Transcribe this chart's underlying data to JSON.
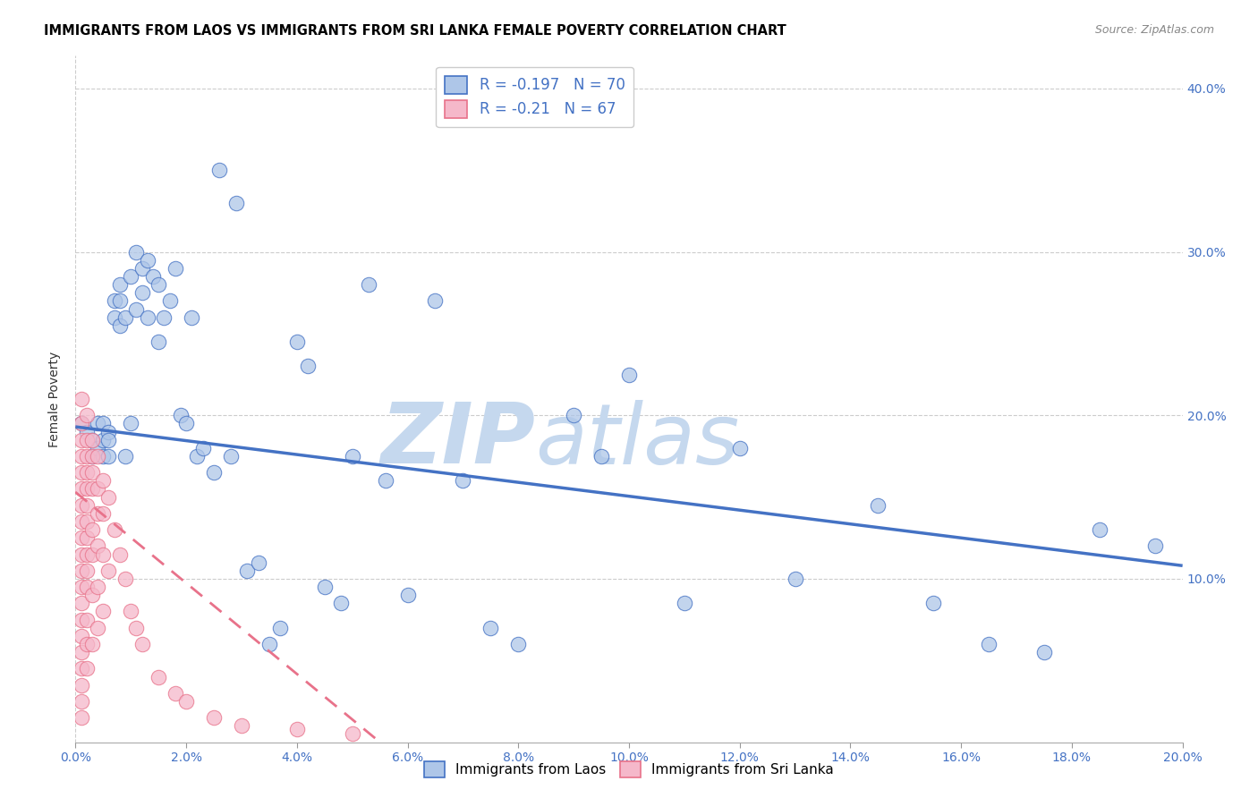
{
  "title": "IMMIGRANTS FROM LAOS VS IMMIGRANTS FROM SRI LANKA FEMALE POVERTY CORRELATION CHART",
  "source": "Source: ZipAtlas.com",
  "ylabel": "Female Poverty",
  "xlim": [
    0.0,
    0.2
  ],
  "ylim": [
    0.0,
    0.42
  ],
  "laos_R": -0.197,
  "laos_N": 70,
  "srilanka_R": -0.21,
  "srilanka_N": 67,
  "laos_color": "#aec6e8",
  "srilanka_color": "#f5b8ca",
  "laos_line_color": "#4472C4",
  "srilanka_line_color": "#e8728a",
  "watermark_zip": "ZIP",
  "watermark_atlas": "atlas",
  "watermark_color": "#c5d8ee",
  "background_color": "#ffffff",
  "title_fontsize": 10.5,
  "source_fontsize": 9,
  "laos_x": [
    0.001,
    0.002,
    0.003,
    0.003,
    0.004,
    0.004,
    0.005,
    0.005,
    0.005,
    0.006,
    0.006,
    0.006,
    0.007,
    0.007,
    0.008,
    0.008,
    0.008,
    0.009,
    0.009,
    0.01,
    0.01,
    0.011,
    0.011,
    0.012,
    0.012,
    0.013,
    0.013,
    0.014,
    0.015,
    0.015,
    0.016,
    0.017,
    0.018,
    0.019,
    0.02,
    0.021,
    0.022,
    0.023,
    0.025,
    0.026,
    0.028,
    0.029,
    0.031,
    0.033,
    0.035,
    0.037,
    0.04,
    0.042,
    0.045,
    0.048,
    0.05,
    0.053,
    0.056,
    0.06,
    0.065,
    0.07,
    0.075,
    0.08,
    0.09,
    0.095,
    0.1,
    0.11,
    0.12,
    0.13,
    0.145,
    0.155,
    0.165,
    0.175,
    0.185,
    0.195
  ],
  "laos_y": [
    0.195,
    0.19,
    0.185,
    0.175,
    0.195,
    0.18,
    0.195,
    0.185,
    0.175,
    0.19,
    0.185,
    0.175,
    0.27,
    0.26,
    0.28,
    0.27,
    0.255,
    0.26,
    0.175,
    0.285,
    0.195,
    0.3,
    0.265,
    0.29,
    0.275,
    0.295,
    0.26,
    0.285,
    0.28,
    0.245,
    0.26,
    0.27,
    0.29,
    0.2,
    0.195,
    0.26,
    0.175,
    0.18,
    0.165,
    0.35,
    0.175,
    0.33,
    0.105,
    0.11,
    0.06,
    0.07,
    0.245,
    0.23,
    0.095,
    0.085,
    0.175,
    0.28,
    0.16,
    0.09,
    0.27,
    0.16,
    0.07,
    0.06,
    0.2,
    0.175,
    0.225,
    0.085,
    0.18,
    0.1,
    0.145,
    0.085,
    0.06,
    0.055,
    0.13,
    0.12
  ],
  "srilanka_x": [
    0.001,
    0.001,
    0.001,
    0.001,
    0.001,
    0.001,
    0.001,
    0.001,
    0.001,
    0.001,
    0.001,
    0.001,
    0.001,
    0.001,
    0.001,
    0.001,
    0.001,
    0.001,
    0.001,
    0.001,
    0.002,
    0.002,
    0.002,
    0.002,
    0.002,
    0.002,
    0.002,
    0.002,
    0.002,
    0.002,
    0.002,
    0.002,
    0.002,
    0.002,
    0.003,
    0.003,
    0.003,
    0.003,
    0.003,
    0.003,
    0.003,
    0.003,
    0.004,
    0.004,
    0.004,
    0.004,
    0.004,
    0.004,
    0.005,
    0.005,
    0.005,
    0.005,
    0.006,
    0.006,
    0.007,
    0.008,
    0.009,
    0.01,
    0.011,
    0.012,
    0.015,
    0.018,
    0.02,
    0.025,
    0.03,
    0.04,
    0.05
  ],
  "srilanka_y": [
    0.21,
    0.195,
    0.185,
    0.175,
    0.165,
    0.155,
    0.145,
    0.135,
    0.125,
    0.115,
    0.105,
    0.095,
    0.085,
    0.075,
    0.065,
    0.055,
    0.045,
    0.035,
    0.025,
    0.015,
    0.2,
    0.185,
    0.175,
    0.165,
    0.155,
    0.145,
    0.135,
    0.125,
    0.115,
    0.105,
    0.095,
    0.075,
    0.06,
    0.045,
    0.185,
    0.175,
    0.165,
    0.155,
    0.13,
    0.115,
    0.09,
    0.06,
    0.175,
    0.155,
    0.14,
    0.12,
    0.095,
    0.07,
    0.16,
    0.14,
    0.115,
    0.08,
    0.15,
    0.105,
    0.13,
    0.115,
    0.1,
    0.08,
    0.07,
    0.06,
    0.04,
    0.03,
    0.025,
    0.015,
    0.01,
    0.008,
    0.005
  ],
  "laos_line_x0": 0.0,
  "laos_line_x1": 0.2,
  "laos_line_y0": 0.193,
  "laos_line_y1": 0.108,
  "srilanka_line_x0": 0.0,
  "srilanka_line_x1": 0.055,
  "srilanka_line_y0": 0.153,
  "srilanka_line_y1": 0.0
}
